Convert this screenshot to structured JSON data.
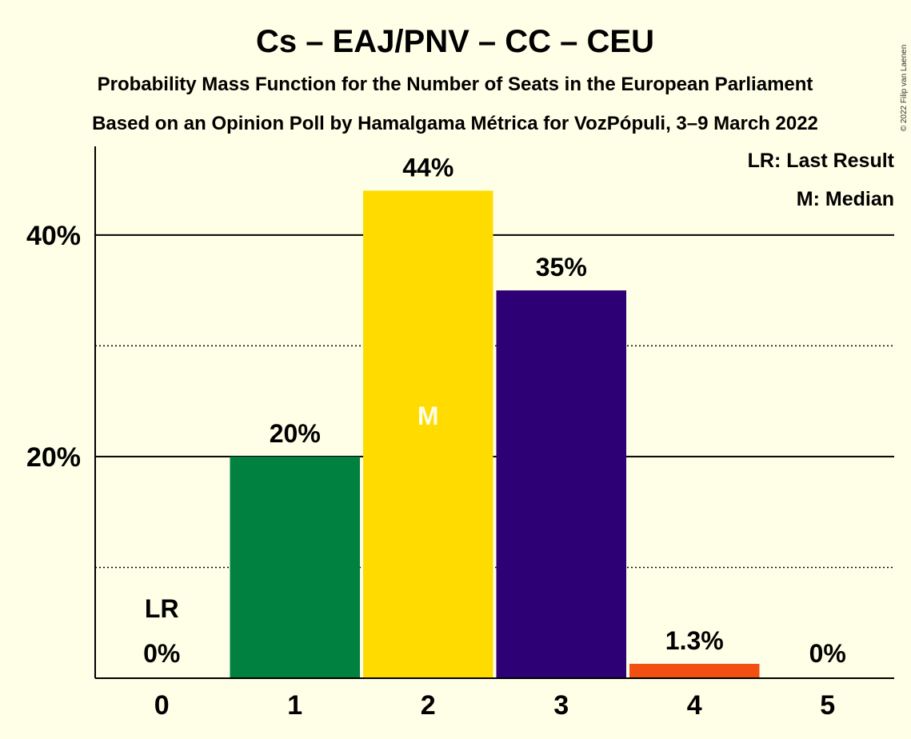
{
  "copyright": "© 2022 Filip van Laenen",
  "legend": {
    "last_result": "LR: Last Result",
    "median": "M: Median"
  },
  "chart_data": {
    "type": "bar",
    "title": "Cs – EAJ/PNV – CC – CEU",
    "subtitle": "Probability Mass Function for the Number of Seats in the European Parliament",
    "subtitle2": "Based on an Opinion Poll by Hamalgama Métrica for VozPópuli, 3–9 March 2022",
    "xlabel": "",
    "ylabel": "",
    "categories": [
      "0",
      "1",
      "2",
      "3",
      "4",
      "5"
    ],
    "values": [
      0,
      20,
      44,
      35,
      1.3,
      0
    ],
    "value_labels": [
      "0%",
      "20%",
      "44%",
      "35%",
      "1.3%",
      "0%"
    ],
    "bar_colors": [
      "#FFFEE6",
      "#008140",
      "#FFDB00",
      "#2E0075",
      "#F24F12",
      "#FFFEE6"
    ],
    "ylim": [
      0,
      48
    ],
    "yticks": [
      20,
      40
    ],
    "ytick_labels": [
      "20%",
      "40%"
    ],
    "minor_gridlines": [
      10,
      30
    ],
    "last_result_index": 0,
    "last_result_marker": "LR",
    "median_index": 2,
    "median_marker": "M",
    "grid": true,
    "legend_position": "top-right"
  }
}
